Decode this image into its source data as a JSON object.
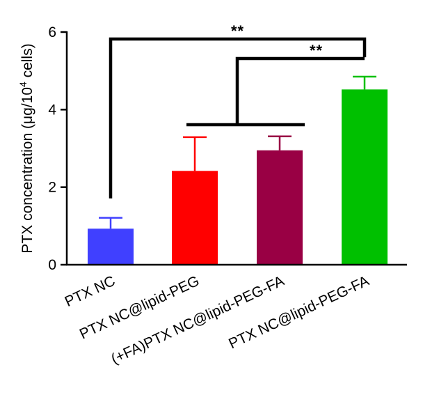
{
  "chart_data": {
    "type": "bar",
    "categories": [
      "PTX NC",
      "PTX NC@lipid-PEG",
      "(+FA)PTX NC@lipid-PEG-FA",
      "PTX NC@lipid-PEG-FA"
    ],
    "values": [
      0.93,
      2.42,
      2.95,
      4.52
    ],
    "error_upper": [
      0.28,
      0.87,
      0.36,
      0.33
    ],
    "colors": [
      "#4040ff",
      "#ff0000",
      "#990044",
      "#00c000"
    ],
    "ylabel": {
      "prefix": "PTX concentration (μg/10",
      "superscript": "4",
      "suffix": " cells)"
    },
    "ylim": [
      0,
      6
    ],
    "yticks": [
      0,
      2,
      4,
      6
    ],
    "ytick_labels": [
      "0",
      "2",
      "4",
      "6"
    ],
    "grid": false,
    "significance": [
      {
        "label": "**",
        "from": [
          0
        ],
        "to": 3
      },
      {
        "label": "**",
        "from": [
          1,
          2
        ],
        "to": 3
      }
    ]
  }
}
